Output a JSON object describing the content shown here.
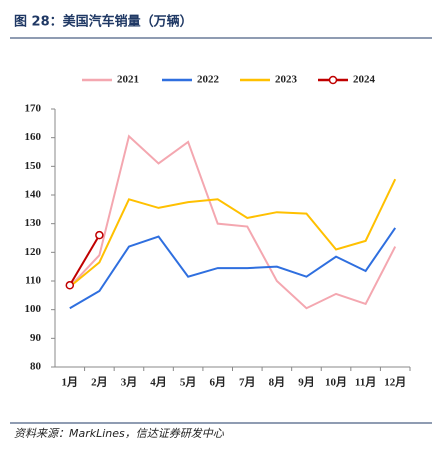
{
  "chart_data": {
    "type": "line",
    "title": "图 28：美国汽车销量（万辆）",
    "source": "资料来源：MarkLines，信达证券研发中心",
    "categories": [
      "1月",
      "2月",
      "3月",
      "4月",
      "5月",
      "6月",
      "7月",
      "8月",
      "9月",
      "10月",
      "11月",
      "12月"
    ],
    "series": [
      {
        "name": "2021",
        "color": "#f4a7b0",
        "values": [
          108,
          119,
          160.5,
          151,
          158.5,
          130,
          129,
          110,
          100.5,
          105.5,
          102,
          122
        ]
      },
      {
        "name": "2022",
        "color": "#2f6fdf",
        "values": [
          100.5,
          106.5,
          122,
          125.5,
          111.5,
          114.5,
          114.5,
          115,
          111.5,
          118.5,
          113.5,
          128.5
        ]
      },
      {
        "name": "2023",
        "color": "#ffc000",
        "values": [
          108,
          116.5,
          138.5,
          135.5,
          137.5,
          138.5,
          132,
          134,
          133.5,
          121,
          124,
          145.5
        ]
      },
      {
        "name": "2024",
        "color": "#c00000",
        "marker": "circle",
        "values": [
          108.5,
          126,
          null,
          null,
          null,
          null,
          null,
          null,
          null,
          null,
          null,
          null
        ]
      }
    ],
    "ylim": [
      80,
      170
    ],
    "yticks": [
      80,
      90,
      100,
      110,
      120,
      130,
      140,
      150,
      160,
      170
    ],
    "grid": false,
    "legend": "top"
  }
}
